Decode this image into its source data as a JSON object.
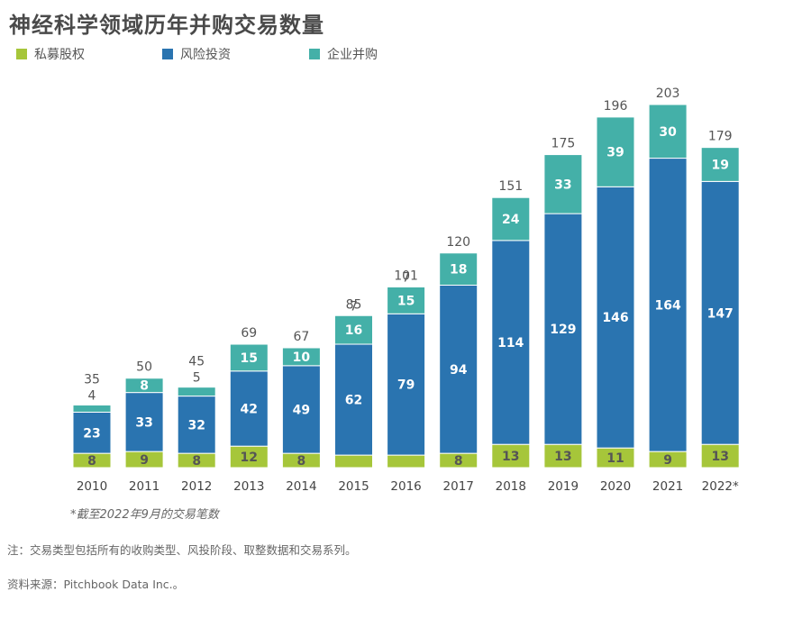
{
  "page_title": "神经科学领域历年并购交易数量",
  "colors": {
    "private_equity": "#a6c63a",
    "venture": "#2a74b0",
    "corporate": "#44b0a8"
  },
  "chart_data": {
    "type": "bar",
    "stacked": true,
    "title": "神经科学领域历年并购交易数量",
    "xlabel": "",
    "ylabel": "",
    "ylim": [
      0,
      210
    ],
    "grid": false,
    "legend_position": "top-left",
    "categories": [
      "2010",
      "2011",
      "2012",
      "2013",
      "2014",
      "2015",
      "2016",
      "2017",
      "2018",
      "2019",
      "2020",
      "2021",
      "2022*"
    ],
    "series": [
      {
        "name": "私募股权",
        "key": "private_equity",
        "values": [
          8,
          9,
          8,
          12,
          8,
          7,
          7,
          8,
          13,
          13,
          11,
          9,
          13
        ]
      },
      {
        "name": "风险投资",
        "key": "venture",
        "values": [
          23,
          33,
          32,
          42,
          49,
          62,
          79,
          94,
          114,
          129,
          146,
          164,
          147
        ]
      },
      {
        "name": "企业并购",
        "key": "corporate",
        "values": [
          4,
          8,
          5,
          15,
          10,
          16,
          15,
          18,
          24,
          33,
          39,
          30,
          19
        ]
      }
    ],
    "totals": [
      35,
      50,
      45,
      69,
      67,
      85,
      101,
      120,
      151,
      175,
      196,
      203,
      179
    ]
  },
  "footnote": "*截至2022年9月的交易笔数",
  "note": "注：交易类型包括所有的收购类型、风投阶段、取整数据和交易系列。",
  "source": "资料来源：Pitchbook Data Inc.。"
}
